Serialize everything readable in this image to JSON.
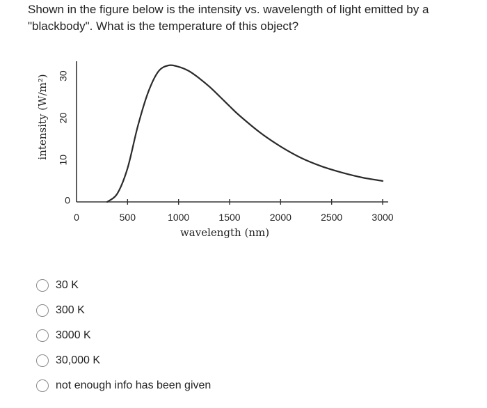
{
  "question": "Shown in the figure below is the intensity vs. wavelength of light emitted by a \"blackbody\". What is the temperature of this object?",
  "chart_data": {
    "type": "line",
    "title": "",
    "xlabel": "wavelength (nm)",
    "ylabel": "intensity (W/m²)",
    "xlim": [
      0,
      3000
    ],
    "ylim": [
      0,
      34
    ],
    "x_ticks": [
      0,
      500,
      1000,
      1500,
      2000,
      2500,
      3000
    ],
    "y_ticks": [
      0,
      10,
      20,
      30
    ],
    "grid": false,
    "series": [
      {
        "x": [
          300,
          400,
          500,
          600,
          700,
          800,
          900,
          1000,
          1100,
          1200,
          1300,
          1400,
          1500,
          1600,
          1800,
          2000,
          2200,
          2400,
          2600,
          2800,
          3000
        ],
        "y": [
          0,
          2,
          8,
          18,
          26,
          31,
          32.5,
          32.2,
          31.2,
          29.5,
          27.5,
          25.2,
          22.8,
          20.5,
          16.5,
          13.2,
          10.5,
          8.5,
          7,
          5.8,
          5
        ]
      }
    ]
  },
  "options": [
    {
      "label": "30 K"
    },
    {
      "label": "300 K"
    },
    {
      "label": "3000 K"
    },
    {
      "label": "30,000 K"
    },
    {
      "label": "not enough info has been given"
    }
  ]
}
